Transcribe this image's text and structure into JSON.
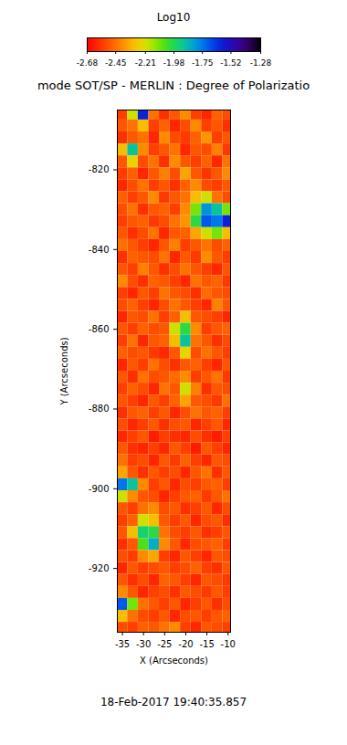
{
  "chart_data": {
    "type": "heatmap",
    "title": "mode SOT/SP - MERLIN : Degree of Polarizatio",
    "x_label": "X (Arcseconds)",
    "y_label": "Y (Arcseconds)",
    "annotations": [
      "18-Feb-2017 19:40:35.857"
    ],
    "xlim": [
      -36.2,
      -9.4
    ],
    "ylim": [
      -936,
      -805
    ],
    "xticks": [
      -35,
      -30,
      -25,
      -20,
      -15,
      -10
    ],
    "yticks": [
      -920,
      -900,
      -880,
      -860,
      -840,
      -820
    ],
    "colorbar": {
      "label": "Log10",
      "range": [
        -2.68,
        -1.28
      ],
      "ticks": [
        -2.68,
        -2.45,
        -2.21,
        -1.98,
        -1.75,
        -1.52,
        -1.28
      ]
    },
    "cells": {
      "x": [
        -35,
        -32.5,
        -30,
        -27.5,
        -25,
        -22.5,
        -20,
        -17.5,
        -15,
        -12.5,
        -10
      ],
      "y": [
        -806,
        -809,
        -812,
        -815,
        -818,
        -821,
        -824,
        -827,
        -830,
        -833,
        -836,
        -839,
        -842,
        -845,
        -848,
        -851,
        -854,
        -857,
        -860,
        -863,
        -866,
        -869,
        -872,
        -875,
        -878,
        -881,
        -884,
        -887,
        -890,
        -893,
        -896,
        -899,
        -902,
        -905,
        -908,
        -911,
        -914,
        -917,
        -920,
        -923,
        -926,
        -929,
        -932,
        -935
      ],
      "values": [
        [
          -2.55,
          -2.2,
          -1.6,
          -2.45,
          -2.58,
          -2.5,
          -2.4,
          -2.55,
          -2.6,
          -2.48,
          -2.52
        ],
        [
          -2.5,
          -2.45,
          -2.3,
          -2.55,
          -2.48,
          -2.6,
          -2.52,
          -2.4,
          -2.55,
          -2.5,
          -2.58
        ],
        [
          -2.58,
          -2.5,
          -2.45,
          -2.6,
          -2.4,
          -2.52,
          -2.56,
          -2.48,
          -2.38,
          -2.55,
          -2.5
        ],
        [
          -2.3,
          -1.9,
          -2.4,
          -2.55,
          -2.5,
          -2.45,
          -2.6,
          -2.5,
          -2.52,
          -2.42,
          -2.56
        ],
        [
          -2.5,
          -2.25,
          -2.52,
          -2.45,
          -2.58,
          -2.4,
          -2.5,
          -2.55,
          -2.48,
          -2.6,
          -2.45
        ],
        [
          -2.55,
          -2.48,
          -2.6,
          -2.5,
          -2.42,
          -2.52,
          -2.35,
          -2.5,
          -2.57,
          -2.5,
          -2.4
        ],
        [
          -2.6,
          -2.52,
          -2.45,
          -2.55,
          -2.5,
          -2.58,
          -2.48,
          -2.4,
          -2.52,
          -2.55,
          -2.5
        ],
        [
          -2.48,
          -2.55,
          -2.5,
          -2.4,
          -2.56,
          -2.5,
          -2.45,
          -2.3,
          -2.2,
          -2.45,
          -2.52
        ],
        [
          -2.52,
          -2.45,
          -2.58,
          -2.5,
          -2.48,
          -2.55,
          -2.4,
          -2.1,
          -1.8,
          -1.9,
          -2.1
        ],
        [
          -2.55,
          -2.5,
          -2.48,
          -2.56,
          -2.52,
          -2.45,
          -2.38,
          -2.0,
          -1.7,
          -1.75,
          -1.6
        ],
        [
          -2.5,
          -2.58,
          -2.52,
          -2.45,
          -2.6,
          -2.5,
          -2.48,
          -2.35,
          -2.2,
          -2.1,
          -2.3
        ],
        [
          -2.45,
          -2.5,
          -2.55,
          -2.6,
          -2.5,
          -2.42,
          -2.55,
          -2.5,
          -2.45,
          -2.52,
          -2.48
        ],
        [
          -2.58,
          -2.48,
          -2.5,
          -2.52,
          -2.45,
          -2.6,
          -2.5,
          -2.56,
          -2.4,
          -2.5,
          -2.55
        ],
        [
          -2.5,
          -2.55,
          -2.42,
          -2.5,
          -2.58,
          -2.52,
          -2.45,
          -2.5,
          -2.55,
          -2.6,
          -2.5
        ],
        [
          -2.4,
          -2.52,
          -2.58,
          -2.48,
          -2.5,
          -2.55,
          -2.6,
          -2.45,
          -2.5,
          -2.48,
          -2.56
        ],
        [
          -2.55,
          -2.6,
          -2.5,
          -2.55,
          -2.45,
          -2.5,
          -2.52,
          -2.58,
          -2.46,
          -2.5,
          -2.52
        ],
        [
          -2.52,
          -2.48,
          -2.55,
          -2.6,
          -2.52,
          -2.45,
          -2.5,
          -2.55,
          -2.6,
          -2.42,
          -2.5
        ],
        [
          -2.6,
          -2.5,
          -2.52,
          -2.45,
          -2.55,
          -2.48,
          -2.3,
          -2.5,
          -2.52,
          -2.55,
          -2.6
        ],
        [
          -2.5,
          -2.55,
          -2.48,
          -2.52,
          -2.5,
          -2.2,
          -2.0,
          -2.4,
          -2.55,
          -2.5,
          -2.48
        ],
        [
          -2.55,
          -2.45,
          -2.6,
          -2.5,
          -2.48,
          -2.3,
          -1.9,
          -2.45,
          -2.5,
          -2.58,
          -2.52
        ],
        [
          -2.48,
          -2.52,
          -2.5,
          -2.56,
          -2.6,
          -2.5,
          -2.25,
          -2.52,
          -2.45,
          -2.5,
          -2.55
        ],
        [
          -2.6,
          -2.5,
          -2.55,
          -2.45,
          -2.52,
          -2.58,
          -2.5,
          -2.48,
          -2.55,
          -2.6,
          -2.5
        ],
        [
          -2.5,
          -2.58,
          -2.45,
          -2.52,
          -2.5,
          -2.46,
          -2.4,
          -2.55,
          -2.5,
          -2.45,
          -2.56
        ],
        [
          -2.55,
          -2.48,
          -2.52,
          -2.6,
          -2.45,
          -2.5,
          -2.2,
          -2.42,
          -2.58,
          -2.5,
          -2.52
        ],
        [
          -2.5,
          -2.55,
          -2.6,
          -2.5,
          -2.55,
          -2.48,
          -2.35,
          -2.5,
          -2.52,
          -2.56,
          -2.45
        ],
        [
          -2.58,
          -2.5,
          -2.48,
          -2.55,
          -2.5,
          -2.6,
          -2.52,
          -2.45,
          -2.5,
          -2.48,
          -2.55
        ],
        [
          -2.52,
          -2.6,
          -2.55,
          -2.5,
          -2.58,
          -2.52,
          -2.5,
          -2.6,
          -2.55,
          -2.5,
          -2.6
        ],
        [
          -2.6,
          -2.55,
          -2.5,
          -2.62,
          -2.55,
          -2.58,
          -2.6,
          -2.52,
          -2.58,
          -2.62,
          -2.55
        ],
        [
          -2.5,
          -2.58,
          -2.6,
          -2.55,
          -2.6,
          -2.5,
          -2.55,
          -2.62,
          -2.5,
          -2.55,
          -2.6
        ],
        [
          -2.45,
          -2.55,
          -2.52,
          -2.6,
          -2.5,
          -2.56,
          -2.48,
          -2.55,
          -2.6,
          -2.5,
          -2.52
        ],
        [
          -2.35,
          -2.5,
          -2.58,
          -2.5,
          -2.55,
          -2.52,
          -2.6,
          -2.5,
          -2.45,
          -2.58,
          -2.5
        ],
        [
          -1.75,
          -1.9,
          -2.4,
          -2.55,
          -2.5,
          -2.6,
          -2.52,
          -2.55,
          -2.5,
          -2.48,
          -2.55
        ],
        [
          -2.2,
          -2.4,
          -2.5,
          -2.52,
          -2.6,
          -2.55,
          -2.5,
          -2.48,
          -2.56,
          -2.5,
          -2.45
        ],
        [
          -2.5,
          -2.55,
          -2.45,
          -2.4,
          -2.52,
          -2.5,
          -2.58,
          -2.55,
          -2.5,
          -2.6,
          -2.52
        ],
        [
          -2.55,
          -2.48,
          -2.2,
          -2.3,
          -2.5,
          -2.55,
          -2.5,
          -2.6,
          -2.52,
          -2.5,
          -2.58
        ],
        [
          -2.5,
          -2.3,
          -1.95,
          -2.0,
          -2.45,
          -2.52,
          -2.55,
          -2.5,
          -2.58,
          -2.55,
          -2.5
        ],
        [
          -2.58,
          -2.5,
          -2.05,
          -1.85,
          -2.4,
          -2.5,
          -2.6,
          -2.52,
          -2.5,
          -2.48,
          -2.55
        ],
        [
          -2.52,
          -2.55,
          -2.4,
          -2.35,
          -2.55,
          -2.6,
          -2.5,
          -2.55,
          -2.6,
          -2.5,
          -2.52
        ],
        [
          -2.6,
          -2.5,
          -2.55,
          -2.52,
          -2.5,
          -2.55,
          -2.52,
          -2.48,
          -2.55,
          -2.58,
          -2.5
        ],
        [
          -2.5,
          -2.58,
          -2.52,
          -2.6,
          -2.48,
          -2.5,
          -2.55,
          -2.6,
          -2.5,
          -2.52,
          -2.56
        ],
        [
          -2.4,
          -2.5,
          -2.6,
          -2.55,
          -2.52,
          -2.58,
          -2.5,
          -2.52,
          -2.56,
          -2.5,
          -2.55
        ],
        [
          -1.7,
          -2.1,
          -2.45,
          -2.5,
          -2.55,
          -2.5,
          -2.6,
          -2.55,
          -2.5,
          -2.58,
          -2.52
        ],
        [
          -2.3,
          -2.45,
          -2.52,
          -2.55,
          -2.5,
          -2.6,
          -2.52,
          -2.5,
          -2.55,
          -2.5,
          -2.48
        ],
        [
          -2.52,
          -2.55,
          -2.48,
          -2.5,
          -2.45,
          -2.4,
          -2.55,
          -2.6,
          -2.5,
          -2.52,
          -2.55
        ]
      ]
    }
  }
}
